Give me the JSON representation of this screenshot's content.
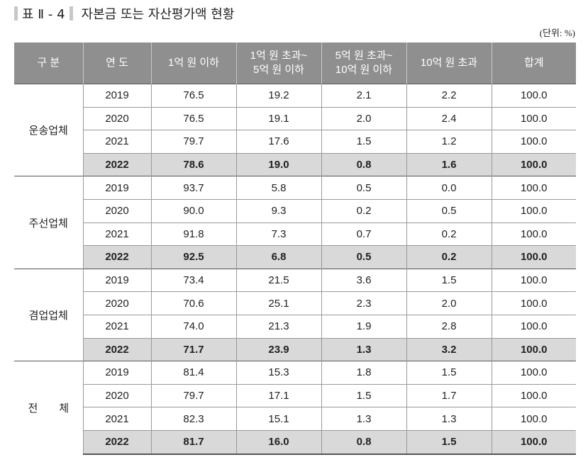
{
  "title": {
    "label": "표 Ⅱ - 4",
    "text": "자본금 또는 자산평가액 현황"
  },
  "unit": "(단위: %)",
  "headers": [
    "구 분",
    "연 도",
    "1억 원 이하",
    "1억 원 초과~\n5억 원 이하",
    "5억 원 초과~\n10억 원 이하",
    "10억 원 초과",
    "합계"
  ],
  "groups": [
    {
      "name": "운송업체",
      "rows": [
        [
          "2019",
          "76.5",
          "19.2",
          "2.1",
          "2.2",
          "100.0"
        ],
        [
          "2020",
          "76.5",
          "19.1",
          "2.0",
          "2.4",
          "100.0"
        ],
        [
          "2021",
          "79.7",
          "17.6",
          "1.5",
          "1.2",
          "100.0"
        ],
        [
          "2022",
          "78.6",
          "19.0",
          "0.8",
          "1.6",
          "100.0"
        ]
      ]
    },
    {
      "name": "주선업체",
      "rows": [
        [
          "2019",
          "93.7",
          "5.8",
          "0.5",
          "0.0",
          "100.0"
        ],
        [
          "2020",
          "90.0",
          "9.3",
          "0.2",
          "0.5",
          "100.0"
        ],
        [
          "2021",
          "91.8",
          "7.3",
          "0.7",
          "0.2",
          "100.0"
        ],
        [
          "2022",
          "92.5",
          "6.8",
          "0.5",
          "0.2",
          "100.0"
        ]
      ]
    },
    {
      "name": "겸업업체",
      "rows": [
        [
          "2019",
          "73.4",
          "21.5",
          "3.6",
          "1.5",
          "100.0"
        ],
        [
          "2020",
          "70.6",
          "25.1",
          "2.3",
          "2.0",
          "100.0"
        ],
        [
          "2021",
          "74.0",
          "21.3",
          "1.9",
          "2.8",
          "100.0"
        ],
        [
          "2022",
          "71.7",
          "23.9",
          "1.3",
          "3.2",
          "100.0"
        ]
      ]
    },
    {
      "name": "전　　체",
      "rows": [
        [
          "2019",
          "81.4",
          "15.3",
          "1.8",
          "1.5",
          "100.0"
        ],
        [
          "2020",
          "79.7",
          "17.1",
          "1.5",
          "1.7",
          "100.0"
        ],
        [
          "2021",
          "82.3",
          "15.1",
          "1.3",
          "1.3",
          "100.0"
        ],
        [
          "2022",
          "81.7",
          "16.0",
          "0.8",
          "1.5",
          "100.0"
        ]
      ]
    }
  ]
}
